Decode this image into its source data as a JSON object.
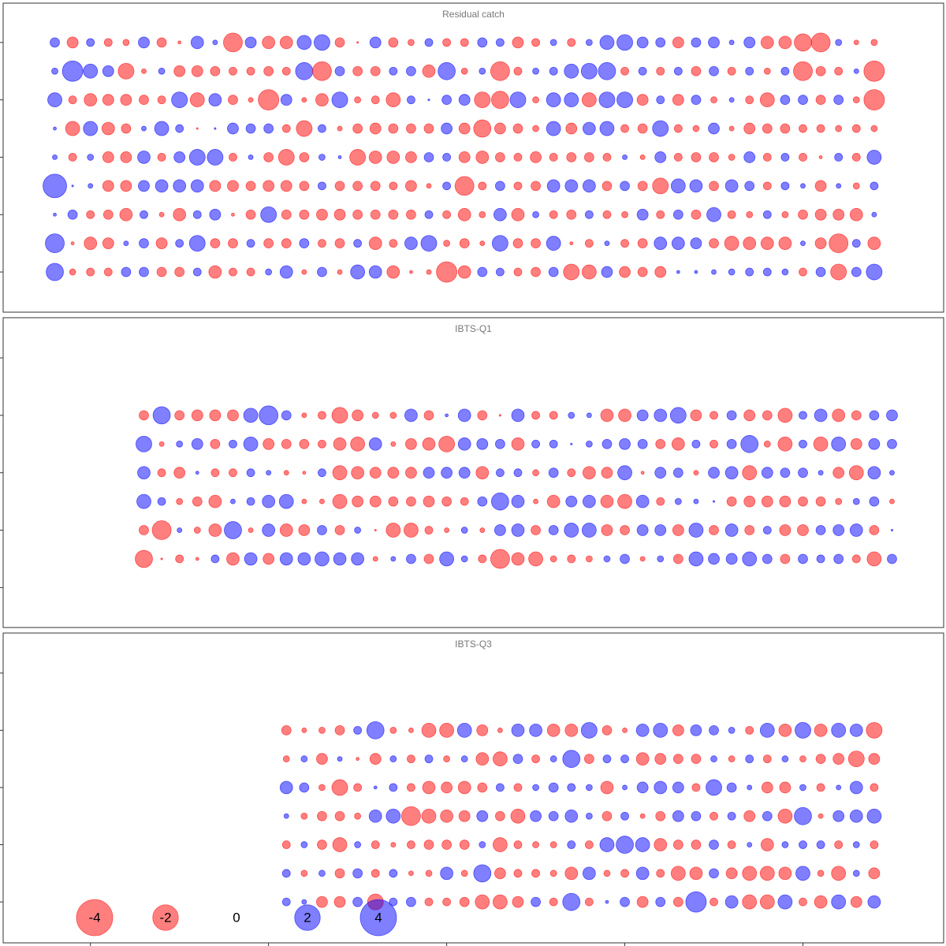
{
  "chart_data": [
    {
      "type": "bubble",
      "title": "Residual catch",
      "x": [
        0,
        1,
        2,
        3,
        4,
        5,
        6,
        7,
        8,
        9,
        10,
        11,
        12,
        13,
        14,
        15,
        16,
        17,
        18,
        19,
        20,
        21,
        22,
        23,
        24,
        25,
        26,
        27,
        28,
        29,
        30,
        31,
        32,
        33,
        34,
        35,
        36,
        37,
        38,
        39,
        40,
        41,
        42,
        43,
        44,
        45,
        46
      ],
      "y": [
        9,
        8,
        7,
        6,
        5,
        4,
        3,
        2,
        1
      ],
      "values": [
        [
          0.27,
          -0.37,
          0.19,
          -0.19,
          -0.12,
          0.37,
          -0.27,
          -0.03,
          0.48,
          0.07,
          -1.09,
          0.37,
          -0.48,
          -0.48,
          0.61,
          0.76,
          -0.27,
          -0.01,
          0.37,
          -0.27,
          -0.12,
          0.19,
          -0.19,
          -0.19,
          0.27,
          0.19,
          -0.37,
          -0.19,
          0.12,
          -0.19,
          0.12,
          0.61,
          0.76,
          0.37,
          0.27,
          -0.37,
          0.27,
          0.37,
          0.07,
          0.37,
          -0.48,
          -0.48,
          -0.91,
          -1.09,
          0.12,
          -0.07,
          -0.12
        ],
        [
          0.12,
          1.28,
          0.61,
          0.37,
          -0.76,
          -0.07,
          0.12,
          -0.37,
          -0.37,
          -0.27,
          -0.19,
          -0.19,
          -0.27,
          -0.19,
          0.91,
          -1.09,
          0.27,
          -0.27,
          -0.27,
          0.19,
          0.27,
          -0.48,
          0.91,
          -0.12,
          0.12,
          -1.09,
          -0.19,
          0.12,
          0.19,
          0.61,
          0.76,
          0.91,
          -0.19,
          0.19,
          -0.19,
          0.19,
          -0.27,
          0.27,
          -0.19,
          0.19,
          -0.12,
          0.19,
          -1.09,
          -0.27,
          -0.19,
          0.07,
          -1.28
        ],
        [
          0.61,
          -0.19,
          -0.48,
          -0.37,
          -0.37,
          -0.27,
          -0.19,
          0.76,
          -0.61,
          0.48,
          -0.27,
          -0.07,
          -1.28,
          0.37,
          -0.07,
          -0.48,
          0.76,
          -0.12,
          -0.19,
          -0.61,
          0.19,
          0.01,
          0.27,
          0.37,
          -0.76,
          -0.91,
          0.76,
          -0.12,
          0.61,
          0.61,
          -0.61,
          0.76,
          0.76,
          -0.37,
          0.19,
          -0.37,
          0.27,
          -0.12,
          0.07,
          -0.19,
          -0.61,
          0.27,
          0.27,
          -0.27,
          0.27,
          -0.12,
          -1.28
        ],
        [
          0.03,
          -0.61,
          0.61,
          -0.48,
          -0.27,
          0.07,
          0.61,
          0.19,
          -0.01,
          0.01,
          0.37,
          0.27,
          0.27,
          -0.19,
          -0.76,
          0.19,
          -0.07,
          -0.27,
          -0.37,
          -0.27,
          -0.27,
          -0.27,
          0.37,
          -0.37,
          -0.91,
          -0.37,
          -0.27,
          -0.12,
          0.61,
          -0.37,
          0.48,
          0.61,
          -0.19,
          -0.27,
          0.76,
          -0.19,
          -0.12,
          0.37,
          -0.07,
          -0.37,
          -0.27,
          -0.27,
          -0.19,
          -0.19,
          -0.12,
          -0.19,
          -0.12
        ],
        [
          0.07,
          -0.19,
          0.12,
          -0.37,
          -0.37,
          0.48,
          -0.19,
          0.37,
          0.76,
          0.76,
          -0.19,
          0.07,
          -0.27,
          -0.76,
          -0.27,
          0.12,
          0.03,
          -0.76,
          -0.48,
          -0.48,
          -0.37,
          0.27,
          0.19,
          -0.37,
          -0.48,
          -0.27,
          -0.19,
          -0.37,
          -0.19,
          -0.27,
          -0.27,
          -0.19,
          0.07,
          -0.07,
          0.37,
          -0.19,
          -0.27,
          -0.27,
          -0.12,
          0.37,
          -0.19,
          0.19,
          -0.19,
          -0.03,
          0.19,
          -0.19,
          0.61
        ],
        [
          1.7,
          0.01,
          0.07,
          -0.37,
          -0.37,
          0.37,
          0.48,
          0.48,
          0.48,
          -0.37,
          -0.37,
          -0.27,
          -0.37,
          -0.37,
          -0.27,
          0.19,
          -0.27,
          -0.27,
          -0.27,
          -0.19,
          -0.37,
          -0.07,
          0.19,
          -1.09,
          -0.19,
          0.27,
          -0.19,
          -0.27,
          0.48,
          0.48,
          0.48,
          -0.27,
          0.27,
          -0.27,
          -0.76,
          0.61,
          0.48,
          -0.27,
          0.48,
          0.27,
          -0.19,
          0.19,
          0.07,
          -0.37,
          0.07,
          -0.12,
          0.19
        ],
        [
          0.03,
          0.27,
          -0.19,
          -0.27,
          -0.48,
          0.19,
          -0.07,
          -0.48,
          0.19,
          0.37,
          -0.03,
          -0.27,
          0.76,
          -0.27,
          -0.27,
          -0.37,
          -0.37,
          -0.27,
          -0.27,
          -0.27,
          -0.27,
          0.19,
          -0.19,
          -0.48,
          -0.12,
          0.48,
          -0.48,
          0.12,
          -0.19,
          -0.27,
          0.19,
          -0.19,
          -0.12,
          0.37,
          -0.19,
          0.27,
          -0.27,
          0.61,
          -0.19,
          -0.12,
          0.19,
          -0.12,
          -0.27,
          -0.37,
          -0.37,
          -0.48,
          0.07
        ],
        [
          1.09,
          -0.03,
          -0.48,
          -0.37,
          0.07,
          0.27,
          -0.37,
          0.19,
          0.76,
          -0.27,
          -0.27,
          0.19,
          -0.27,
          -0.27,
          0.27,
          -0.19,
          -0.27,
          0.19,
          -0.48,
          -0.19,
          0.48,
          0.76,
          -0.12,
          -0.27,
          -0.07,
          0.76,
          -0.27,
          -0.27,
          0.61,
          -0.03,
          -0.19,
          0.07,
          -0.19,
          -0.27,
          0.48,
          0.48,
          0.37,
          -0.27,
          -0.61,
          -0.48,
          -0.48,
          -0.48,
          0.07,
          -0.37,
          -1.09,
          0.19,
          -0.48
        ],
        [
          0.91,
          -0.12,
          -0.19,
          -0.19,
          0.27,
          0.27,
          -0.27,
          -0.27,
          0.19,
          -0.48,
          -0.19,
          -0.19,
          0.12,
          0.48,
          -0.07,
          0.27,
          -0.07,
          0.61,
          0.48,
          -0.48,
          -0.03,
          -0.07,
          -1.28,
          -0.48,
          0.27,
          0.19,
          -0.19,
          -0.27,
          0.27,
          -0.76,
          -0.61,
          0.37,
          -0.37,
          -0.27,
          -0.37,
          0.03,
          0.03,
          0.07,
          0.12,
          0.19,
          0.19,
          0.12,
          -0.19,
          0.27,
          -0.76,
          0.27,
          0.76
        ]
      ],
      "xlim": [
        -2.9,
        49.9
      ],
      "xticks": [
        2,
        12,
        22,
        32,
        42
      ],
      "ylim": [
        -0.4,
        10.37
      ],
      "yticks": [
        1,
        3,
        5,
        7,
        9
      ],
      "colors": {
        "positive": "#0000ff",
        "negative": "#ff0000"
      }
    },
    {
      "type": "bubble",
      "title": "IBTS-Q1",
      "x": [
        5,
        6,
        7,
        8,
        9,
        10,
        11,
        12,
        13,
        14,
        15,
        16,
        17,
        18,
        19,
        20,
        21,
        22,
        23,
        24,
        25,
        26,
        27,
        28,
        29,
        30,
        31,
        32,
        33,
        34,
        35,
        36,
        37,
        38,
        39,
        40,
        41,
        42,
        43,
        44,
        45,
        46,
        47
      ],
      "y": [
        6,
        5,
        4,
        3,
        2,
        1
      ],
      "values": [
        [
          -0.27,
          0.91,
          -0.27,
          -0.37,
          -0.37,
          -0.37,
          0.61,
          1.09,
          0.27,
          -0.07,
          -0.19,
          -0.76,
          -0.37,
          -0.12,
          -0.12,
          0.48,
          -0.27,
          0.03,
          0.48,
          -0.27,
          -0.01,
          0.48,
          -0.19,
          -0.19,
          0.12,
          0.07,
          -0.48,
          -0.48,
          0.37,
          0.48,
          0.76,
          -0.37,
          -0.19,
          0.27,
          -0.37,
          -0.27,
          -0.61,
          0.19,
          0.48,
          -0.48,
          -0.27,
          0.27,
          0.37
        ],
        [
          0.76,
          -0.07,
          0.12,
          0.37,
          -0.27,
          0.19,
          0.61,
          -0.37,
          -0.27,
          -0.27,
          -0.19,
          -0.48,
          -0.61,
          0.48,
          -0.07,
          -0.37,
          -0.48,
          -0.76,
          0.48,
          0.37,
          0.27,
          -0.48,
          0.19,
          0.19,
          0.01,
          0.12,
          0.27,
          0.37,
          0.27,
          -0.27,
          -0.48,
          0.19,
          -0.19,
          0.27,
          0.91,
          -0.12,
          -0.61,
          0.19,
          -0.61,
          0.61,
          -0.37,
          0.37,
          0.27
        ],
        [
          0.48,
          -0.19,
          -0.37,
          0.03,
          -0.19,
          -0.19,
          0.19,
          0.07,
          -0.07,
          -0.03,
          0.19,
          -0.61,
          -0.48,
          -0.37,
          -0.37,
          -0.37,
          0.37,
          0.37,
          0.37,
          -0.48,
          0.19,
          0.19,
          -0.12,
          0.27,
          -0.19,
          -0.48,
          -0.37,
          0.61,
          -0.03,
          0.37,
          0.27,
          -0.07,
          0.37,
          0.48,
          -0.61,
          0.37,
          0.27,
          0.27,
          0.07,
          -0.37,
          -0.61,
          0.48,
          0.07
        ],
        [
          0.61,
          0.19,
          -0.12,
          -0.27,
          -0.48,
          0.07,
          0.19,
          0.48,
          0.61,
          -0.07,
          -0.07,
          -0.61,
          -0.37,
          -0.37,
          -0.27,
          -0.27,
          -0.37,
          -0.27,
          -0.19,
          0.27,
          0.91,
          0.48,
          -0.07,
          -0.48,
          0.37,
          0.48,
          -0.48,
          -0.61,
          0.48,
          -0.19,
          0.12,
          0.07,
          0.01,
          -0.27,
          -0.37,
          -0.37,
          -0.37,
          -0.27,
          -0.27,
          -0.12,
          0.12,
          0.27,
          -0.07
        ],
        [
          -0.27,
          -1.09,
          0.07,
          -0.12,
          -0.48,
          0.91,
          -0.07,
          0.48,
          -0.48,
          -0.37,
          0.27,
          -0.27,
          0.12,
          -0.01,
          -0.61,
          -0.61,
          -0.19,
          -0.07,
          0.12,
          -0.07,
          0.37,
          0.48,
          -0.27,
          0.27,
          0.61,
          0.61,
          -0.37,
          -0.27,
          0.37,
          0.37,
          -0.37,
          0.61,
          -0.27,
          0.48,
          -0.27,
          0.19,
          -0.37,
          -0.37,
          0.27,
          0.37,
          0.48,
          -0.27,
          0.01
        ],
        [
          -0.91,
          -0.01,
          -0.19,
          -0.03,
          0.19,
          -0.48,
          0.48,
          -0.37,
          0.48,
          0.48,
          0.61,
          0.48,
          0.48,
          -0.07,
          0.07,
          0.27,
          -0.27,
          0.61,
          0.12,
          -0.19,
          -1.09,
          -0.48,
          -0.61,
          -0.12,
          -0.19,
          -0.12,
          0.12,
          0.27,
          -0.07,
          0.12,
          -0.27,
          0.61,
          0.37,
          0.37,
          0.61,
          0.27,
          -0.27,
          0.27,
          0.19,
          0.27,
          -0.19,
          -0.61,
          0.27
        ]
      ],
      "xlim": [
        -2.9,
        49.9
      ],
      "xticks": [
        2,
        12,
        22,
        32,
        42
      ],
      "ylim": [
        -1.39,
        9.4
      ],
      "yticks": [
        0,
        2,
        4,
        6,
        8
      ],
      "colors": {
        "positive": "#0000ff",
        "negative": "#ff0000"
      }
    },
    {
      "type": "bubble",
      "title": "IBTS-Q3",
      "x": [
        13,
        14,
        15,
        16,
        17,
        18,
        19,
        20,
        21,
        22,
        23,
        24,
        25,
        26,
        27,
        28,
        29,
        30,
        31,
        32,
        33,
        34,
        35,
        36,
        37,
        38,
        39,
        40,
        41,
        42,
        43,
        44,
        45,
        46
      ],
      "y": [
        7,
        6,
        5,
        4,
        3,
        2,
        1
      ],
      "values": [
        [
          -0.27,
          -0.07,
          -0.12,
          -0.27,
          0.19,
          0.91,
          -0.12,
          -0.07,
          -0.61,
          -0.61,
          0.61,
          -0.37,
          -0.07,
          0.48,
          0.48,
          -0.48,
          -0.48,
          0.76,
          -0.27,
          -0.07,
          0.48,
          0.61,
          -0.37,
          0.37,
          0.27,
          0.12,
          -0.19,
          0.61,
          -0.48,
          0.76,
          -0.48,
          0.61,
          0.48,
          -0.76
        ],
        [
          -0.12,
          0.12,
          -0.37,
          0.07,
          -0.03,
          -0.37,
          0.12,
          -0.19,
          0.19,
          -0.12,
          0.12,
          -0.48,
          -0.61,
          0.27,
          -0.19,
          0.12,
          0.91,
          -0.27,
          0.19,
          0.19,
          -0.48,
          -0.37,
          -0.27,
          -0.27,
          0.12,
          -0.12,
          0.19,
          -0.19,
          0.12,
          -0.12,
          -0.27,
          -0.37,
          -0.76,
          -0.37
        ],
        [
          0.48,
          0.27,
          -0.12,
          -0.76,
          -0.19,
          0.03,
          0.19,
          -0.19,
          -0.48,
          -0.37,
          -0.48,
          -0.27,
          0.19,
          -0.19,
          0.12,
          0.27,
          0.19,
          0.12,
          -0.48,
          0.07,
          0.37,
          0.48,
          0.37,
          -0.19,
          0.76,
          0.27,
          0.07,
          -0.37,
          -0.37,
          0.12,
          -0.19,
          0.07,
          0.48,
          -0.19
        ],
        [
          0.07,
          -0.12,
          -0.27,
          -0.27,
          -0.12,
          0.48,
          0.61,
          -1.09,
          -0.61,
          -0.48,
          -0.37,
          0.37,
          -0.27,
          -0.61,
          0.37,
          0.27,
          0.48,
          0.12,
          -0.27,
          0.19,
          -0.07,
          -0.27,
          0.37,
          0.27,
          -0.19,
          0.19,
          -0.37,
          0.27,
          -0.61,
          0.91,
          -0.07,
          0.37,
          0.48,
          0.61
        ],
        [
          -0.19,
          0.12,
          -0.27,
          -0.61,
          0.12,
          -0.19,
          -0.07,
          -0.19,
          -0.27,
          -0.27,
          -0.27,
          0.12,
          -0.61,
          -0.19,
          -0.12,
          -0.12,
          0.19,
          -0.19,
          0.61,
          0.91,
          0.61,
          -0.48,
          -0.27,
          -0.27,
          0.27,
          -0.19,
          0.07,
          -0.48,
          0.12,
          0.19,
          0.19,
          -0.19,
          0.12,
          -0.19
        ],
        [
          0.19,
          -0.12,
          0.12,
          -0.27,
          0.27,
          -0.19,
          0.19,
          -0.07,
          -0.12,
          0.48,
          -0.12,
          0.91,
          -0.37,
          -0.19,
          -0.19,
          -0.12,
          -0.48,
          0.48,
          -0.12,
          -0.19,
          0.48,
          -0.19,
          -0.61,
          -0.48,
          0.27,
          -0.37,
          -0.61,
          -0.61,
          -0.48,
          0.61,
          -0.12,
          -0.61,
          0.12,
          -0.37
        ],
        [
          0.19,
          0.07,
          -0.37,
          -0.37,
          0.27,
          -0.76,
          0.19,
          0.27,
          -0.19,
          -0.19,
          -0.27,
          -0.61,
          -0.61,
          -0.37,
          0.27,
          -0.19,
          0.91,
          -0.19,
          0.03,
          0.27,
          -0.37,
          0.27,
          -0.27,
          1.28,
          -0.19,
          0.48,
          -0.61,
          -0.61,
          0.61,
          -0.19,
          -0.48,
          0.61,
          -0.37,
          0.48
        ]
      ],
      "xlim": [
        -2.9,
        49.9
      ],
      "xticks": [
        2,
        12,
        22,
        32,
        42
      ],
      "ylim": [
        -0.43,
        10.4
      ],
      "yticks": [
        1,
        3,
        5,
        7,
        9
      ],
      "colors": {
        "positive": "#0000ff",
        "negative": "#ff0000"
      }
    }
  ],
  "legend": {
    "values": [
      -4,
      -2,
      0,
      2,
      4
    ]
  }
}
